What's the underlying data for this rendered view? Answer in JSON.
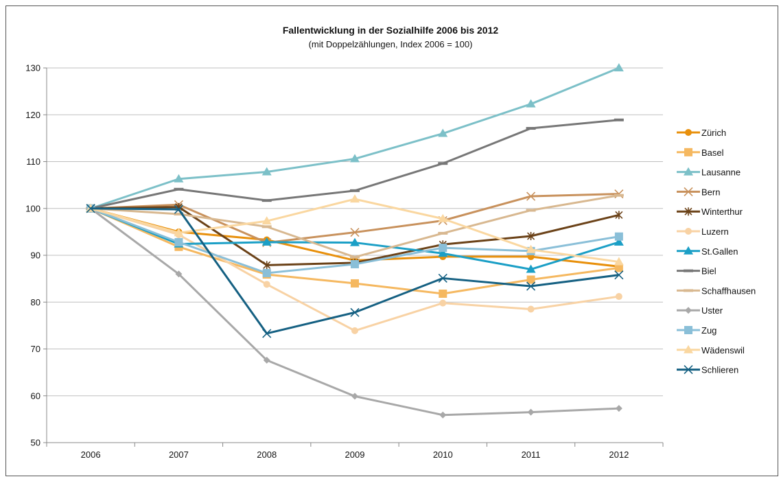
{
  "chart_data": {
    "type": "line",
    "title": "Fallentwicklung in der Sozialhilfe 2006 bis 2012",
    "subtitle": "(mit Doppelzählungen, Index 2006 = 100)",
    "xlabel": "",
    "ylabel": "",
    "x": [
      "2006",
      "2007",
      "2008",
      "2009",
      "2010",
      "2011",
      "2012"
    ],
    "ylim": [
      50,
      130
    ],
    "yticks": [
      50,
      60,
      70,
      80,
      90,
      100,
      110,
      120,
      130
    ],
    "grid": "horizontal",
    "legend_position": "right",
    "series": [
      {
        "name": "Zürich",
        "color": "#e8900c",
        "marker": "circle",
        "values": [
          100,
          95,
          93.3,
          88.9,
          89.7,
          89.7,
          87.6
        ]
      },
      {
        "name": "Basel",
        "color": "#f5b860",
        "marker": "square",
        "values": [
          100,
          91.8,
          85.9,
          84.0,
          81.8,
          84.8,
          87.3
        ]
      },
      {
        "name": "Lausanne",
        "color": "#7cc0c8",
        "marker": "triangle",
        "values": [
          100,
          106.3,
          107.8,
          110.6,
          116.0,
          122.3,
          130.0
        ]
      },
      {
        "name": "Bern",
        "color": "#c8915c",
        "marker": "x",
        "values": [
          100,
          100.8,
          92.7,
          94.9,
          97.4,
          102.6,
          103.1
        ]
      },
      {
        "name": "Winterthur",
        "color": "#6b4218",
        "marker": "star",
        "values": [
          100,
          100.3,
          87.9,
          88.4,
          92.3,
          94.1,
          98.6
        ]
      },
      {
        "name": "Luzern",
        "color": "#f8d2a4",
        "marker": "circle",
        "values": [
          100,
          94.4,
          83.8,
          73.9,
          79.8,
          78.5,
          81.2
        ]
      },
      {
        "name": "St.Gallen",
        "color": "#1b9fc6",
        "marker": "triangle",
        "values": [
          100,
          92.4,
          92.8,
          92.7,
          90.4,
          87.0,
          92.8
        ]
      },
      {
        "name": "Biel",
        "color": "#777777",
        "marker": "dash",
        "values": [
          100,
          104.1,
          101.7,
          103.8,
          109.6,
          117.1,
          118.9
        ]
      },
      {
        "name": "Schaffhausen",
        "color": "#d8b890",
        "marker": "dash",
        "values": [
          100,
          98.8,
          96.1,
          89.6,
          94.7,
          99.6,
          102.8
        ]
      },
      {
        "name": "Uster",
        "color": "#a8a8a8",
        "marker": "diamond",
        "values": [
          100,
          86.0,
          67.6,
          59.9,
          55.9,
          56.5,
          57.3
        ]
      },
      {
        "name": "Zug",
        "color": "#8abfd8",
        "marker": "square",
        "values": [
          100,
          92.8,
          86.2,
          88.1,
          91.6,
          90.9,
          94.0
        ]
      },
      {
        "name": "Wädenswil",
        "color": "#fad7a0",
        "marker": "triangle",
        "values": [
          100,
          94.8,
          97.3,
          102.0,
          97.8,
          91.2,
          88.6
        ]
      },
      {
        "name": "Schlieren",
        "color": "#156082",
        "marker": "x",
        "values": [
          100,
          99.8,
          73.3,
          77.8,
          85.1,
          83.4,
          85.8
        ]
      }
    ]
  }
}
